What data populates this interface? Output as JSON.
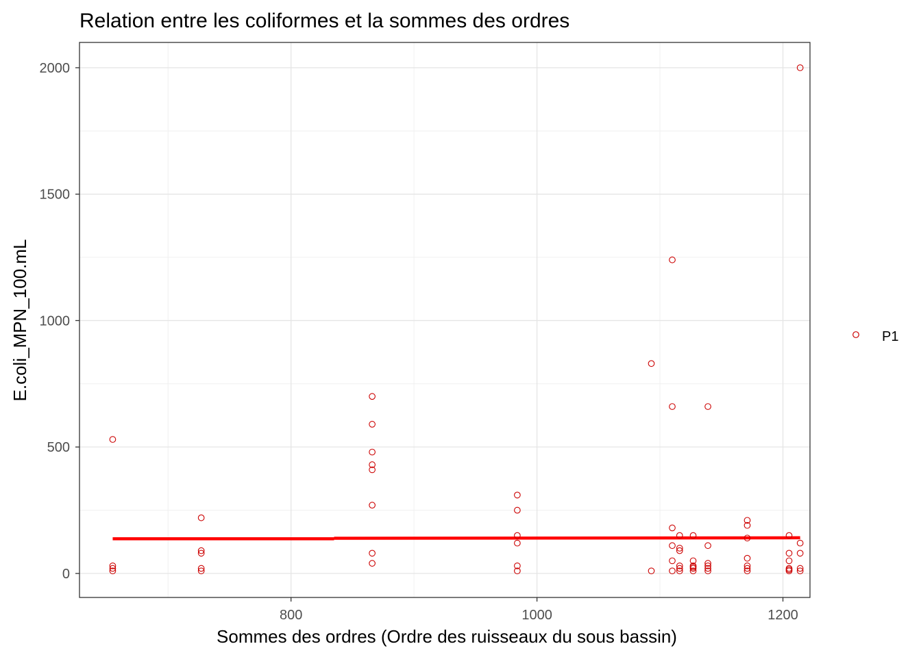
{
  "chart_data": {
    "type": "scatter",
    "title": "Relation entre les coliformes et la sommes des ordres",
    "xlabel": "Sommes des ordres (Ordre des ruisseaux du sous bassin)",
    "ylabel": "E.coli_MPN_100.mL",
    "xlim": [
      628,
      1222
    ],
    "ylim": [
      -95,
      2100
    ],
    "x_ticks": [
      800,
      1000,
      1200
    ],
    "y_ticks": [
      0,
      500,
      1000,
      1500,
      2000
    ],
    "x_minor_ticks": [
      700,
      900,
      1100
    ],
    "y_minor_ticks": [
      250,
      750,
      1250,
      1750
    ],
    "grid": true,
    "legend_position": "right",
    "series": [
      {
        "name": "P1",
        "color": "#cc0000",
        "marker": "open-circle",
        "points": [
          [
            655,
            530
          ],
          [
            655,
            30
          ],
          [
            655,
            20
          ],
          [
            655,
            10
          ],
          [
            727,
            220
          ],
          [
            727,
            90
          ],
          [
            727,
            80
          ],
          [
            727,
            20
          ],
          [
            727,
            10
          ],
          [
            866,
            700
          ],
          [
            866,
            590
          ],
          [
            866,
            480
          ],
          [
            866,
            430
          ],
          [
            866,
            410
          ],
          [
            866,
            270
          ],
          [
            866,
            80
          ],
          [
            866,
            40
          ],
          [
            984,
            310
          ],
          [
            984,
            250
          ],
          [
            984,
            150
          ],
          [
            984,
            120
          ],
          [
            984,
            30
          ],
          [
            984,
            10
          ],
          [
            1093,
            830
          ],
          [
            1093,
            10
          ],
          [
            1110,
            1240
          ],
          [
            1110,
            660
          ],
          [
            1110,
            180
          ],
          [
            1110,
            110
          ],
          [
            1110,
            50
          ],
          [
            1110,
            10
          ],
          [
            1116,
            150
          ],
          [
            1116,
            100
          ],
          [
            1116,
            90
          ],
          [
            1116,
            30
          ],
          [
            1116,
            20
          ],
          [
            1116,
            10
          ],
          [
            1127,
            150
          ],
          [
            1127,
            50
          ],
          [
            1127,
            30
          ],
          [
            1127,
            25
          ],
          [
            1127,
            20
          ],
          [
            1127,
            10
          ],
          [
            1139,
            660
          ],
          [
            1139,
            110
          ],
          [
            1139,
            40
          ],
          [
            1139,
            30
          ],
          [
            1139,
            20
          ],
          [
            1139,
            10
          ],
          [
            1171,
            210
          ],
          [
            1171,
            190
          ],
          [
            1171,
            140
          ],
          [
            1171,
            60
          ],
          [
            1171,
            30
          ],
          [
            1171,
            20
          ],
          [
            1171,
            10
          ],
          [
            1205,
            150
          ],
          [
            1205,
            80
          ],
          [
            1205,
            50
          ],
          [
            1205,
            20
          ],
          [
            1205,
            15
          ],
          [
            1205,
            10
          ],
          [
            1214,
            2000
          ],
          [
            1214,
            120
          ],
          [
            1214,
            80
          ],
          [
            1214,
            20
          ],
          [
            1214,
            10
          ]
        ]
      }
    ],
    "trend_line": {
      "color": "#ff0000",
      "segments": [
        [
          [
            655,
            137
          ],
          [
            835,
            137
          ]
        ],
        [
          [
            835,
            139
          ],
          [
            1214,
            141
          ]
        ]
      ]
    }
  }
}
